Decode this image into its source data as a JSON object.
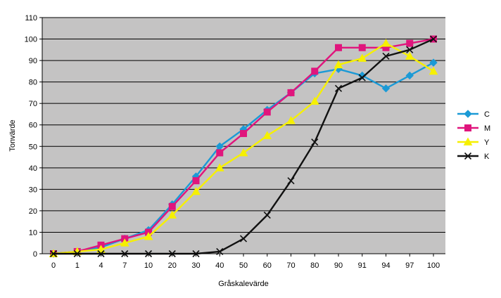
{
  "chart_data": {
    "type": "line",
    "title": "",
    "xlabel": "Gråskalevärde",
    "ylabel": "Tonvärde",
    "categories": [
      "0",
      "1",
      "4",
      "7",
      "10",
      "20",
      "30",
      "40",
      "50",
      "60",
      "70",
      "80",
      "90",
      "91",
      "94",
      "97",
      "100"
    ],
    "ylim": [
      0,
      110
    ],
    "yticks": [
      "0",
      "10",
      "20",
      "30",
      "40",
      "50",
      "60",
      "70",
      "80",
      "90",
      "100",
      "110"
    ],
    "grid": true,
    "legend_position": "right",
    "series": [
      {
        "name": "C",
        "color": "#1b9ad6",
        "marker": "diamond",
        "values": [
          0,
          1,
          3,
          7,
          11,
          23,
          36,
          50,
          58,
          67,
          75,
          84,
          86,
          83,
          77,
          83,
          89
        ]
      },
      {
        "name": "M",
        "color": "#e0157d",
        "marker": "square",
        "values": [
          0,
          1,
          4,
          7,
          10,
          22,
          34,
          47,
          56,
          66,
          75,
          85,
          96,
          96,
          96,
          98,
          100
        ]
      },
      {
        "name": "Y",
        "color": "#f6f000",
        "marker": "triangle",
        "values": [
          0,
          1,
          2,
          5,
          8,
          18,
          29,
          40,
          47,
          55,
          62,
          71,
          88,
          91,
          98,
          92,
          85
        ]
      },
      {
        "name": "K",
        "color": "#111111",
        "marker": "x",
        "values": [
          0,
          0,
          0,
          0,
          0,
          0,
          0,
          1,
          7,
          18,
          34,
          52,
          77,
          82,
          92,
          95,
          100
        ]
      }
    ]
  }
}
